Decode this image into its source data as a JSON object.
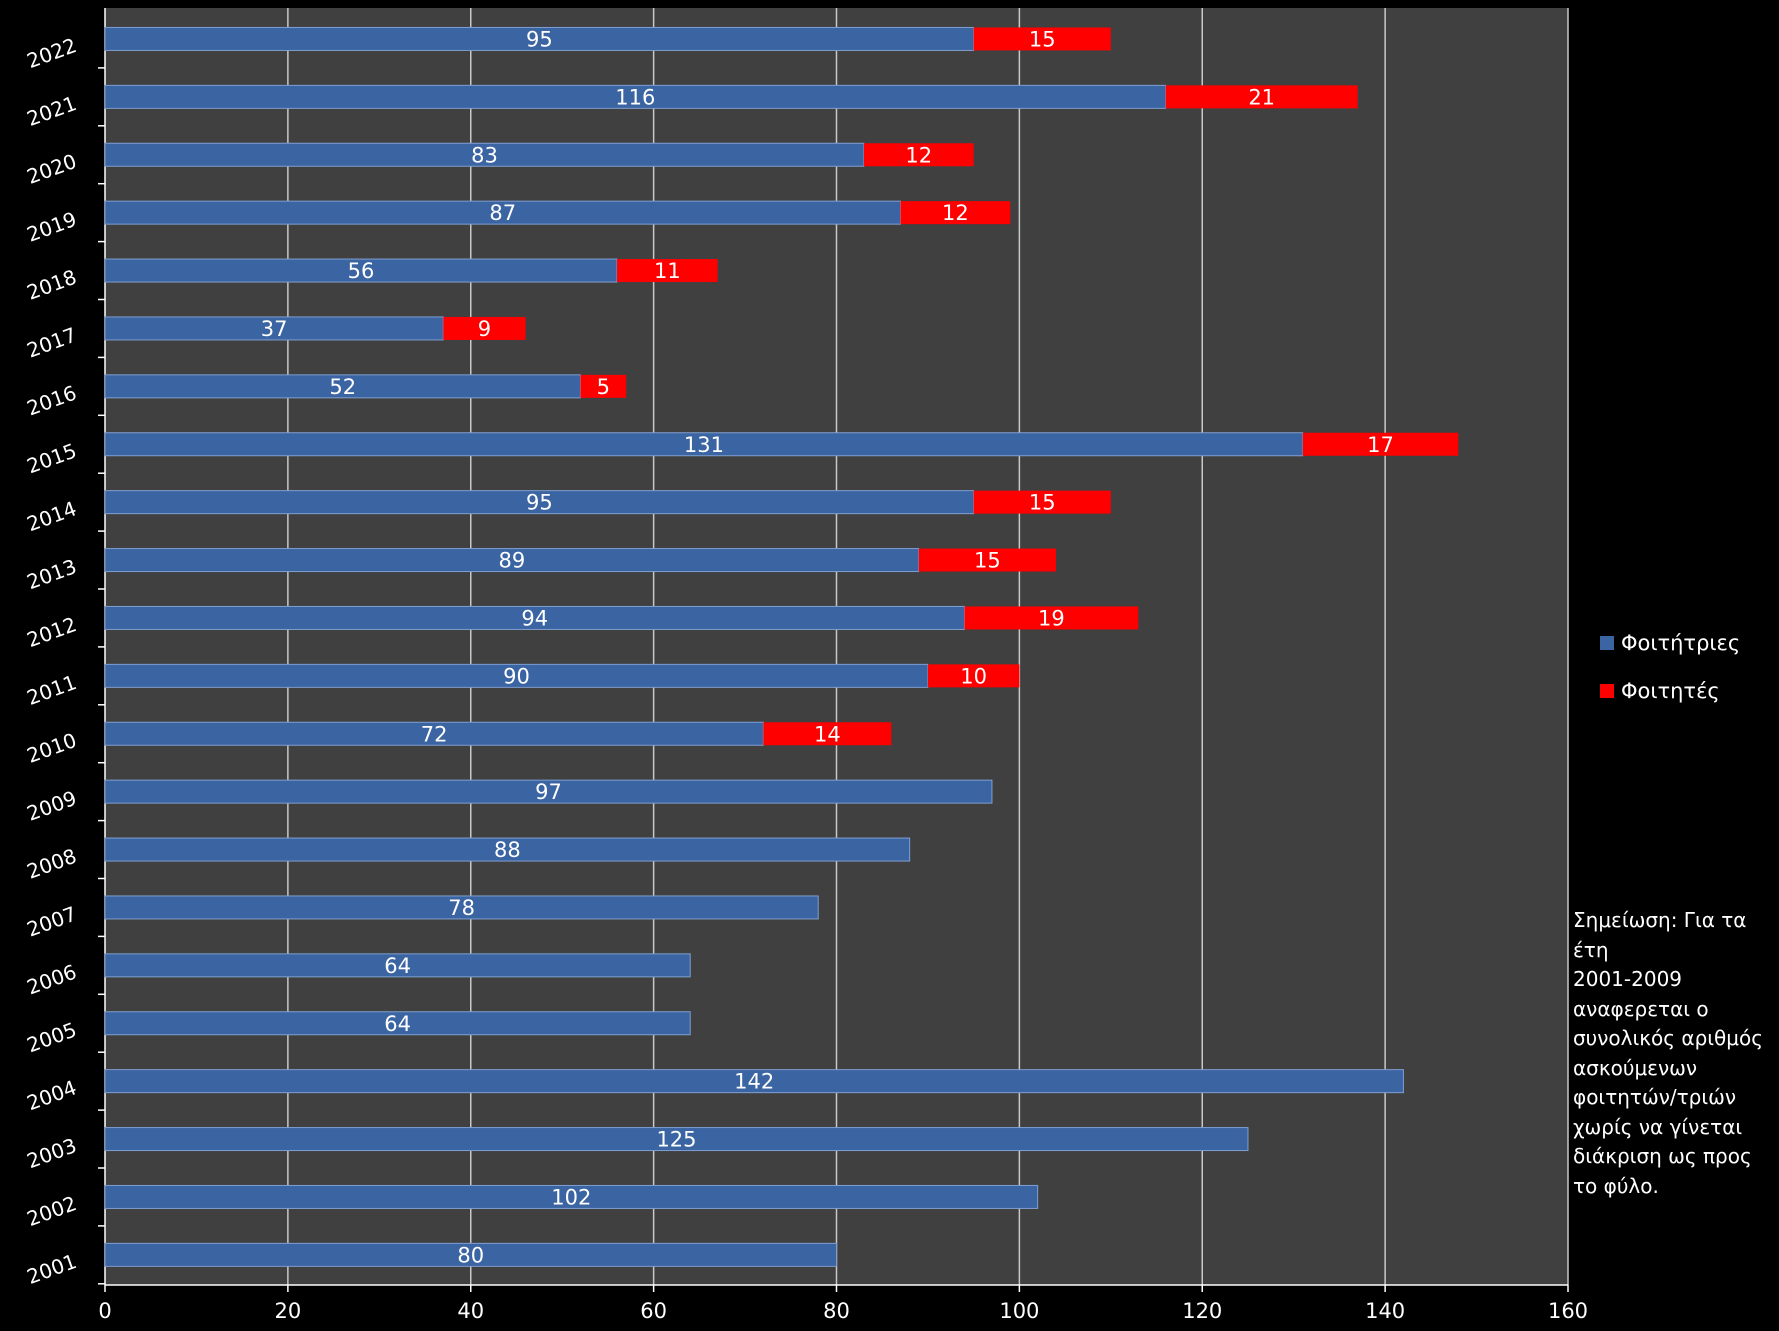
{
  "chart_data": {
    "type": "bar",
    "orientation": "horizontal",
    "stacked": true,
    "categories": [
      "2001",
      "2002",
      "2003",
      "2004",
      "2005",
      "2006",
      "2007",
      "2008",
      "2009",
      "2010",
      "2011",
      "2012",
      "2013",
      "2014",
      "2015",
      "2016",
      "2017",
      "2018",
      "2019",
      "2020",
      "2021",
      "2022"
    ],
    "series": [
      {
        "name": "Φοιτήτριες",
        "color": "#3b64a3",
        "values": [
          80,
          102,
          125,
          142,
          64,
          64,
          78,
          88,
          97,
          72,
          90,
          94,
          89,
          95,
          131,
          52,
          37,
          56,
          87,
          83,
          116,
          95
        ]
      },
      {
        "name": "Φοιτητές",
        "color": "#ff0000",
        "values": [
          null,
          null,
          null,
          null,
          null,
          null,
          null,
          null,
          null,
          14,
          10,
          19,
          15,
          15,
          17,
          5,
          9,
          11,
          12,
          12,
          21,
          15
        ]
      }
    ],
    "xlim": [
      0,
      160
    ],
    "xticks": [
      "0",
      "20",
      "40",
      "60",
      "80",
      "100",
      "120",
      "140",
      "160"
    ],
    "grid": true,
    "legend_position": "right",
    "note": "Σημείωση: Για τα έτη\n2001-2009\nαναφερεται ο\nσυνολικός αριθμός\nασκούμενων\nφοιτητών/τριών\nχωρίς να γίνεται\nδιάκριση  ως προς\nτο φύλο."
  }
}
